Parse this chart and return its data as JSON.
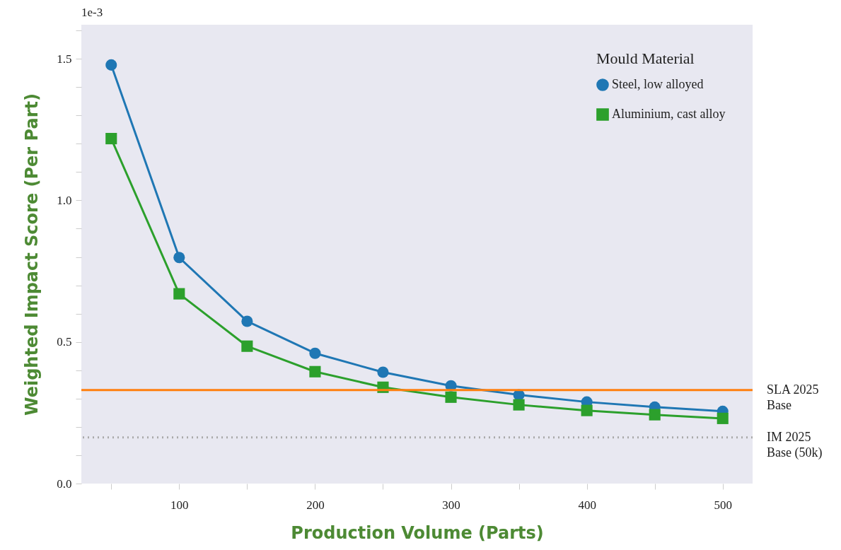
{
  "chart_data": {
    "type": "line",
    "xlabel": "Production Volume (Parts)",
    "ylabel": "Weighted Impact Score (Per Part)",
    "legend_title": "Mould Material",
    "legend": "top right",
    "grid": false,
    "annotations": [
      "1e-3"
    ],
    "x": [
      50,
      100,
      150,
      200,
      250,
      300,
      350,
      400,
      450,
      500
    ],
    "series": [
      {
        "name": "Steel, low alloyed",
        "color": "#1f77b4",
        "marker": "circle",
        "values": [
          1.478,
          0.798,
          0.573,
          0.46,
          0.393,
          0.345,
          0.313,
          0.288,
          0.27,
          0.255
        ]
      },
      {
        "name": "Aluminium, cast alloy",
        "color": "#2ca02c",
        "marker": "square",
        "values": [
          1.218,
          0.67,
          0.485,
          0.395,
          0.34,
          0.305,
          0.278,
          0.258,
          0.243,
          0.23
        ]
      }
    ],
    "ref_lines": [
      {
        "axis": "y",
        "value": 0.33,
        "label": "SLA 2025 Base",
        "color": "#ff7f0e",
        "line_style": "solid"
      },
      {
        "axis": "y",
        "value": 0.163,
        "label": "IM 2025 Base (50k)",
        "color": "#aaaaaa",
        "line_style": "dotted"
      }
    ],
    "xlim": [
      28,
      522
    ],
    "xticks": [
      {
        "value": 50,
        "label": null
      },
      100,
      {
        "value": 150,
        "label": null
      },
      200,
      {
        "value": 250,
        "label": null
      },
      300,
      {
        "value": 350,
        "label": null
      },
      400,
      {
        "value": 450,
        "label": null
      },
      500
    ],
    "ylim": [
      0,
      1.62
    ],
    "yticks": [
      {
        "value": 0,
        "label": "0.0"
      },
      {
        "value": 0.1,
        "label": null
      },
      {
        "value": 0.2,
        "label": null
      },
      {
        "value": 0.3,
        "label": null
      },
      {
        "value": 0.4,
        "label": null
      },
      0.5,
      {
        "value": 0.6,
        "label": null
      },
      {
        "value": 0.7,
        "label": null
      },
      {
        "value": 0.8,
        "label": null
      },
      {
        "value": 0.9,
        "label": null
      },
      {
        "value": 1,
        "label": "1.0"
      },
      {
        "value": 1.1,
        "label": null
      },
      {
        "value": 1.2,
        "label": null
      },
      {
        "value": 1.3,
        "label": null
      },
      {
        "value": 1.4,
        "label": null
      },
      1.5,
      {
        "value": 1.6,
        "label": null
      }
    ]
  }
}
